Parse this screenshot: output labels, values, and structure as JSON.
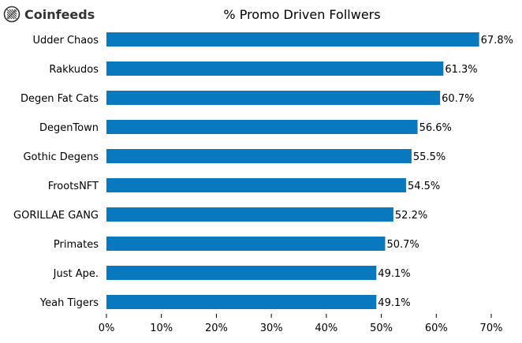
{
  "brand": {
    "name": "Coinfeeds"
  },
  "chart_data": {
    "type": "bar",
    "orientation": "horizontal",
    "title": "% Promo Driven Follwers",
    "xlabel": "",
    "ylabel": "",
    "categories": [
      "Udder Chaos",
      "Rakkudos",
      "Degen Fat Cats",
      "DegenTown",
      "Gothic Degens",
      "FrootsNFT",
      "GORILLAE GANG",
      "Primates",
      "Just Ape.",
      "Yeah Tigers"
    ],
    "values": [
      67.8,
      61.3,
      60.7,
      56.6,
      55.5,
      54.5,
      52.2,
      50.7,
      49.1,
      49.1
    ],
    "value_labels": [
      "67.8%",
      "61.3%",
      "60.7%",
      "56.6%",
      "55.5%",
      "54.5%",
      "52.2%",
      "50.7%",
      "49.1%",
      "49.1%"
    ],
    "xlim": [
      0,
      70
    ],
    "xticks": [
      0,
      10,
      20,
      30,
      40,
      50,
      60,
      70
    ],
    "xtick_labels": [
      "0%",
      "10%",
      "20%",
      "30%",
      "40%",
      "50%",
      "60%",
      "70%"
    ],
    "bar_color": "#0878bf",
    "grid": false,
    "legend": "none"
  }
}
